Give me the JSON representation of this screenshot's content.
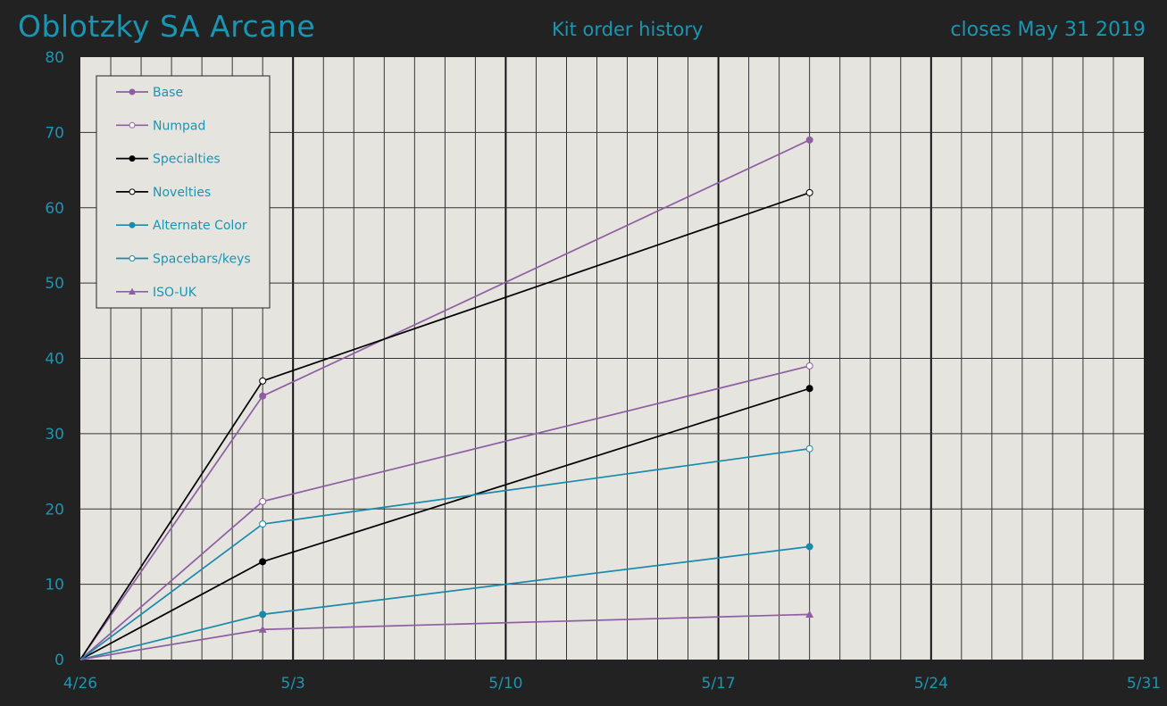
{
  "header": {
    "product": "Oblotzky SA Arcane",
    "subtitle": "Kit order history",
    "closing": "closes May 31 2019"
  },
  "chart_data": {
    "type": "line",
    "title": "Kit order history",
    "xlabel": "",
    "ylabel": "",
    "x_axis": {
      "start": "4/26",
      "end": "5/31",
      "tick_labels": [
        "4/26",
        "5/3",
        "5/10",
        "5/17",
        "5/24",
        "5/31"
      ],
      "minor_grid": "daily"
    },
    "ylim": [
      0,
      80
    ],
    "y_ticks": [
      0,
      10,
      20,
      30,
      40,
      50,
      60,
      70,
      80
    ],
    "grid": true,
    "legend": "top-left",
    "dates": [
      "4/26",
      "5/2",
      "5/20"
    ],
    "series": [
      {
        "name": "Base",
        "values": [
          0,
          35,
          69
        ],
        "color": "#8e5ea2",
        "marker": "filled-circle"
      },
      {
        "name": "Numpad",
        "values": [
          0,
          21,
          39
        ],
        "color": "#8e5ea2",
        "marker": "open-circle"
      },
      {
        "name": "Specialties",
        "values": [
          0,
          13,
          36
        ],
        "color": "#000000",
        "marker": "filled-circle"
      },
      {
        "name": "Novelties",
        "values": [
          0,
          37,
          62
        ],
        "color": "#000000",
        "marker": "open-circle"
      },
      {
        "name": "Alternate Color",
        "values": [
          0,
          6,
          15
        ],
        "color": "#1a8aac",
        "marker": "filled-circle"
      },
      {
        "name": "Spacebars/keys",
        "values": [
          0,
          18,
          28
        ],
        "color": "#1a8aac",
        "marker": "open-circle"
      },
      {
        "name": "ISO-UK",
        "values": [
          0,
          4,
          6
        ],
        "color": "#8e5ea2",
        "marker": "triangle"
      }
    ]
  },
  "colors": {
    "background": "#222222",
    "plot_background": "#e6e4df",
    "accent": "#1a95b3"
  }
}
